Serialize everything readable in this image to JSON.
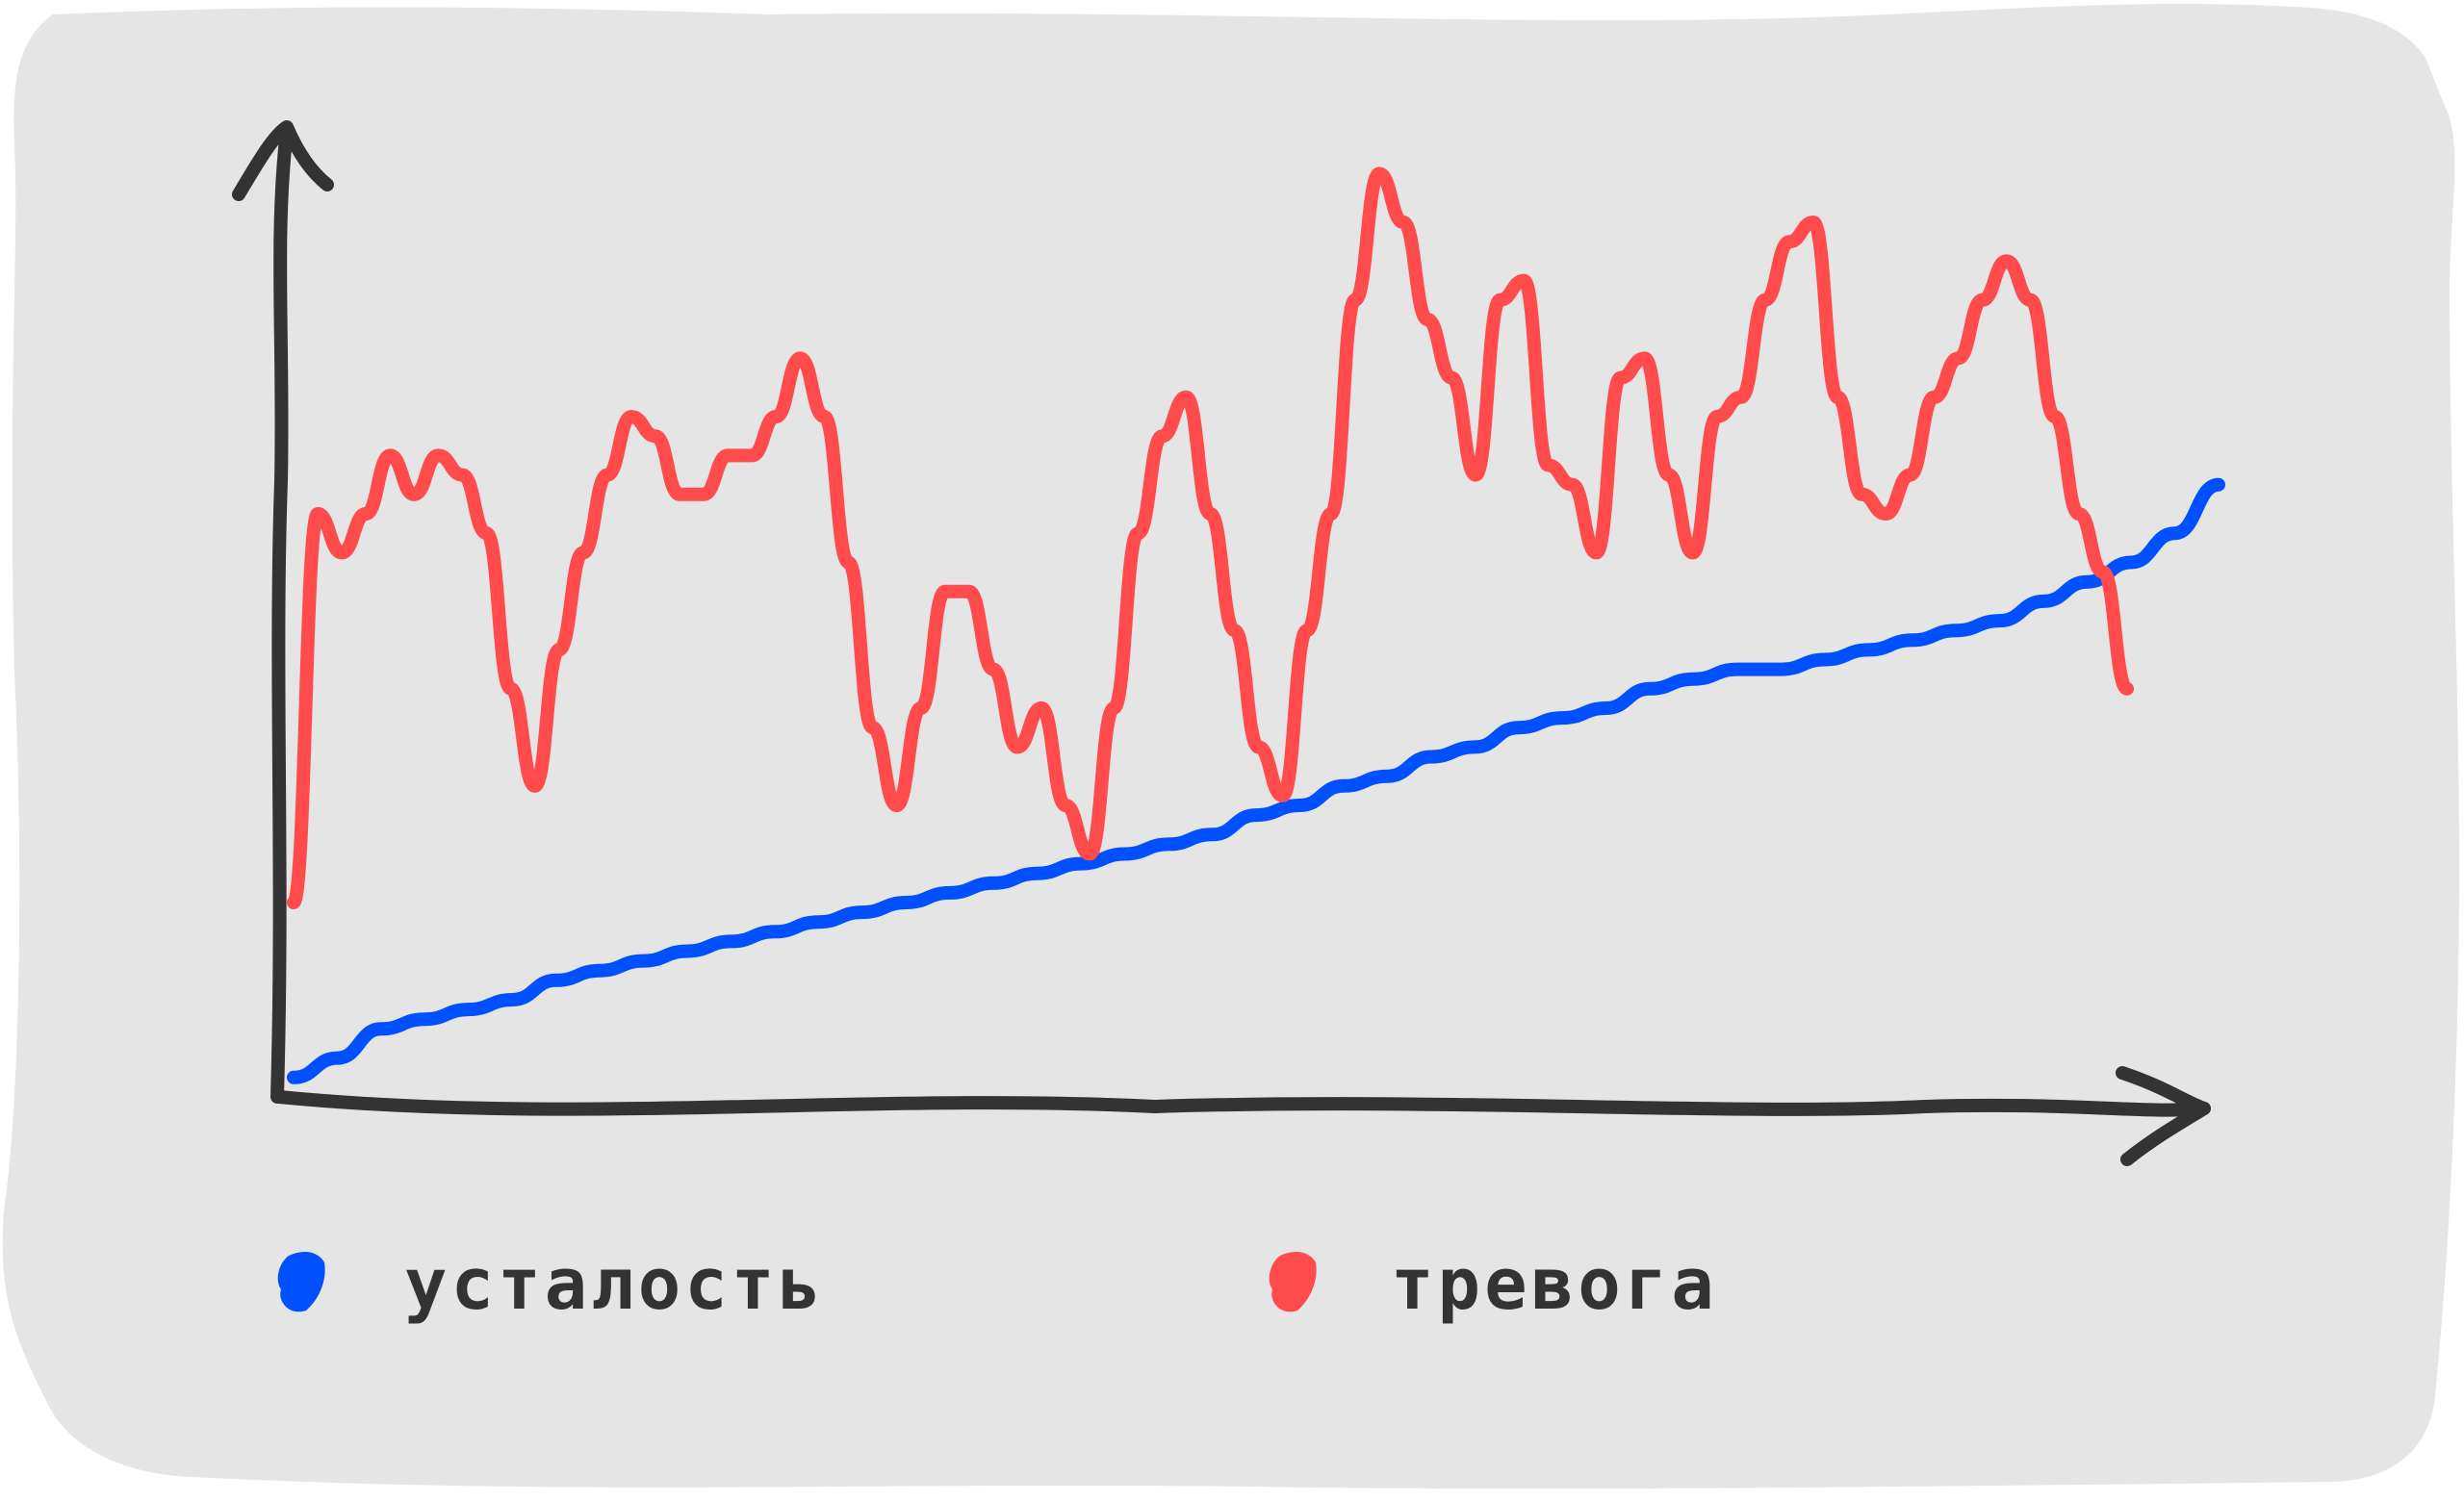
{
  "colors": {
    "background": "#e5e5e5",
    "axis": "#333333",
    "fatigue": "#0050ff",
    "anxiety": "#ff4b4b"
  },
  "chart_data": {
    "type": "line",
    "style": "hand-drawn sketch",
    "axes": {
      "x_arrow": true,
      "y_arrow": true,
      "tick_labels": false,
      "grid": false
    },
    "legend_position": "bottom",
    "series": [
      {
        "name": "усталость",
        "color": "#0050ff",
        "values": [
          2,
          4,
          7,
          8,
          9,
          10,
          12,
          13,
          14,
          15,
          16,
          17,
          18,
          19,
          20,
          21,
          22,
          23,
          24,
          25,
          26,
          27,
          29,
          30,
          32,
          33,
          35,
          36,
          38,
          39,
          40,
          42,
          43,
          44,
          44,
          45,
          46,
          47,
          48,
          49,
          51,
          53,
          55,
          58,
          63
        ]
      },
      {
        "name": "тревога",
        "color": "#ff4b4b",
        "values": [
          20,
          60,
          56,
          60,
          66,
          62,
          66,
          64,
          58,
          42,
          32,
          46,
          56,
          64,
          70,
          68,
          62,
          62,
          66,
          66,
          70,
          76,
          70,
          55,
          38,
          30,
          40,
          52,
          52,
          44,
          36,
          40,
          30,
          25,
          40,
          58,
          68,
          72,
          60,
          48,
          36,
          31,
          48,
          60,
          82,
          95,
          90,
          80,
          74,
          64,
          82,
          84,
          65,
          63,
          56,
          74,
          76,
          64,
          56,
          70,
          72,
          82,
          88,
          90,
          72,
          62,
          60,
          64,
          72,
          76,
          82,
          86,
          82,
          70,
          60,
          54,
          42
        ]
      }
    ]
  },
  "legend": {
    "items": [
      {
        "label": "усталость",
        "color": "#0050ff"
      },
      {
        "label": "тревога",
        "color": "#ff4b4b"
      }
    ]
  }
}
